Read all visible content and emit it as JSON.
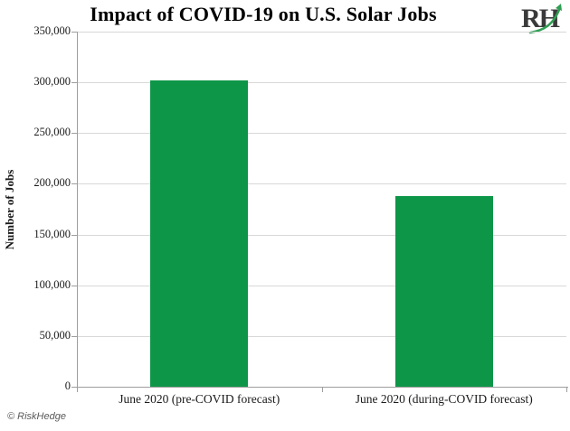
{
  "chart_data": {
    "type": "bar",
    "title": "Impact of COVID-19 on U.S. Solar Jobs",
    "xlabel": "",
    "ylabel": "Number of Jobs",
    "categories": [
      "June 2020 (pre-COVID forecast)",
      "June 2020 (during-COVID forecast)"
    ],
    "values": [
      302000,
      188000
    ],
    "ylim": [
      0,
      350000
    ],
    "ytick_step": 50000,
    "ytick_labels": [
      "0",
      "50,000",
      "100,000",
      "150,000",
      "200,000",
      "250,000",
      "300,000",
      "350,000"
    ],
    "grid": true,
    "legend": "none",
    "bar_color": "#0E9648"
  },
  "branding": {
    "logo_text": "RH",
    "copyright": "© RiskHedge"
  },
  "colors": {
    "bar": "#0E9648",
    "gridline": "#d8d8d8",
    "axis": "#9e9e9e",
    "title": "#000000",
    "tick_text": "#1a1a1a",
    "logo_text": "#3a3a3a",
    "logo_swoosh": "#2f9e53",
    "copyright_text": "#595959"
  }
}
